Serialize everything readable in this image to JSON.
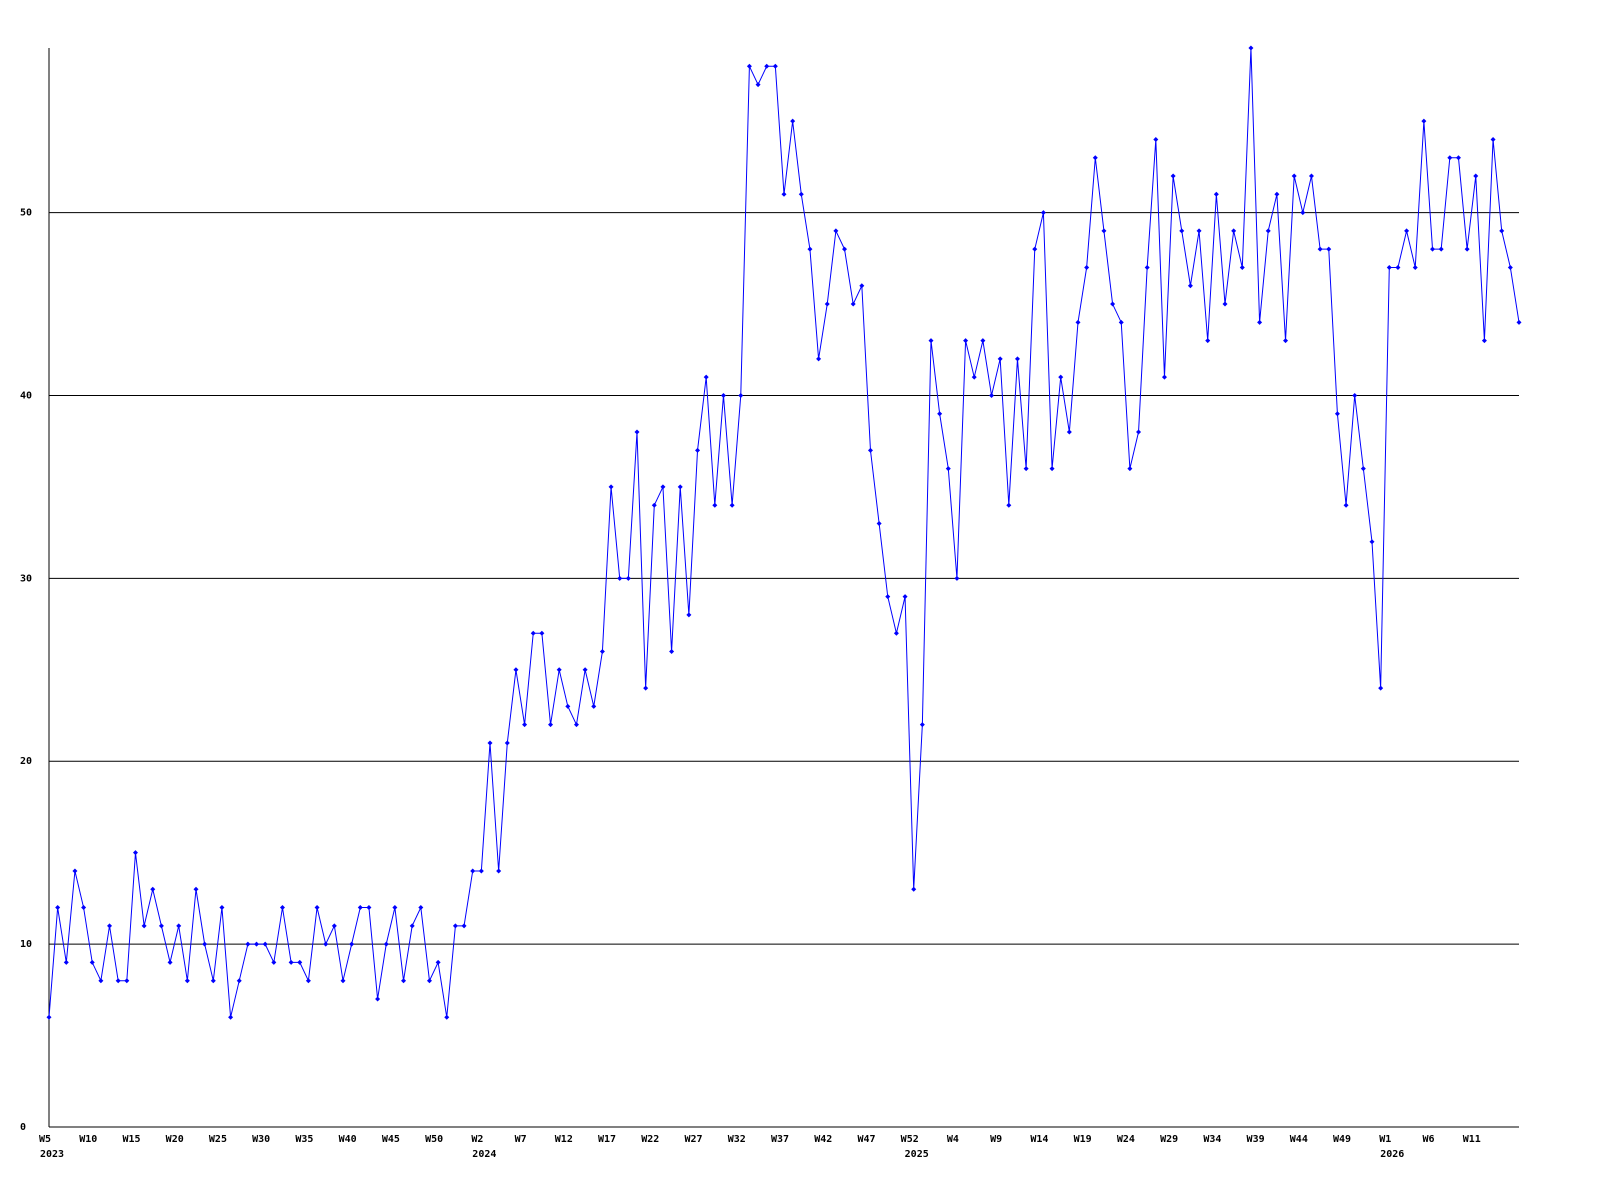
{
  "chart_data": {
    "type": "line",
    "categories": [
      "W5",
      null,
      null,
      null,
      null,
      "W10",
      null,
      null,
      null,
      null,
      "W15",
      null,
      null,
      null,
      null,
      "W20",
      null,
      null,
      null,
      null,
      "W25",
      null,
      null,
      null,
      null,
      "W30",
      null,
      null,
      null,
      null,
      "W35",
      null,
      null,
      null,
      null,
      "W40",
      null,
      null,
      null,
      null,
      "W45",
      null,
      null,
      null,
      null,
      "W50",
      null,
      null,
      null,
      null,
      "W2",
      null,
      null,
      null,
      null,
      "W7",
      null,
      null,
      null,
      null,
      "W12",
      null,
      null,
      null,
      null,
      "W17",
      null,
      null,
      null,
      null,
      "W22",
      null,
      null,
      null,
      null,
      "W27",
      null,
      null,
      null,
      null,
      "W32",
      null,
      null,
      null,
      null,
      "W37",
      null,
      null,
      null,
      null,
      "W42",
      null,
      null,
      null,
      null,
      "W47",
      null,
      null,
      null,
      null,
      "W52",
      null,
      null,
      null,
      null,
      "W4",
      null,
      null,
      null,
      null,
      "W9",
      null,
      null,
      null,
      null,
      "W14",
      null,
      null,
      null,
      null,
      "W19",
      null,
      null,
      null,
      null,
      "W24",
      null,
      null,
      null,
      null,
      "W29",
      null,
      null,
      null,
      null,
      "W34",
      null,
      null,
      null,
      null,
      "W39",
      null,
      null,
      null,
      null,
      "W44",
      null,
      null,
      null,
      null,
      "W49",
      null,
      null,
      null,
      null,
      "W1",
      null,
      null,
      null,
      null,
      "W6",
      null,
      null,
      null,
      null,
      "W11",
      null,
      null,
      null,
      null,
      null
    ],
    "category_years": [
      "2023",
      null,
      null,
      null,
      null,
      null,
      null,
      null,
      null,
      null,
      null,
      null,
      null,
      null,
      null,
      null,
      null,
      null,
      null,
      null,
      null,
      null,
      null,
      null,
      null,
      null,
      null,
      null,
      null,
      null,
      null,
      null,
      null,
      null,
      null,
      null,
      null,
      null,
      null,
      null,
      null,
      null,
      null,
      null,
      null,
      null,
      null,
      null,
      null,
      null,
      "2024",
      null,
      null,
      null,
      null,
      null,
      null,
      null,
      null,
      null,
      null,
      null,
      null,
      null,
      null,
      null,
      null,
      null,
      null,
      null,
      null,
      null,
      null,
      null,
      null,
      null,
      null,
      null,
      null,
      null,
      null,
      null,
      null,
      null,
      null,
      null,
      null,
      null,
      null,
      null,
      null,
      null,
      null,
      null,
      null,
      null,
      null,
      null,
      null,
      null,
      "2025",
      null,
      null,
      null,
      null,
      null,
      null,
      null,
      null,
      null,
      null,
      null,
      null,
      null,
      null,
      null,
      null,
      null,
      null,
      null,
      null,
      null,
      null,
      null,
      null,
      null,
      null,
      null,
      null,
      null,
      null,
      null,
      null,
      null,
      null,
      null,
      null,
      null,
      null,
      null,
      null,
      null,
      null,
      null,
      null,
      null,
      null,
      null,
      null,
      null,
      null,
      null,
      null,
      null,
      null,
      "2026",
      null,
      null,
      null,
      null,
      null,
      null,
      null,
      null,
      null,
      null,
      null,
      null,
      null,
      null,
      null
    ],
    "series": [
      {
        "color": "#0000ff",
        "values": [
          6,
          12,
          9,
          14,
          12,
          9,
          8,
          11,
          8,
          8,
          15,
          11,
          13,
          11,
          9,
          11,
          8,
          13,
          10,
          8,
          12,
          6,
          8,
          10,
          10,
          10,
          9,
          12,
          9,
          9,
          8,
          12,
          10,
          11,
          8,
          10,
          12,
          12,
          7,
          10,
          12,
          8,
          11,
          12,
          8,
          9,
          6,
          11,
          11,
          14,
          14,
          21,
          14,
          21,
          25,
          22,
          27,
          27,
          22,
          25,
          23,
          22,
          25,
          23,
          26,
          35,
          30,
          30,
          38,
          24,
          34,
          35,
          26,
          35,
          28,
          37,
          41,
          34,
          40,
          34,
          40,
          58,
          57,
          58,
          58,
          51,
          55,
          51,
          48,
          42,
          45,
          49,
          48,
          45,
          46,
          37,
          33,
          29,
          27,
          29,
          13,
          22,
          43,
          39,
          36,
          30,
          43,
          41,
          43,
          40,
          42,
          34,
          42,
          36,
          48,
          50,
          36,
          41,
          38,
          44,
          47,
          53,
          49,
          45,
          44,
          36,
          38,
          47,
          54,
          41,
          52,
          49,
          46,
          49,
          43,
          51,
          45,
          49,
          47,
          59,
          44,
          49,
          51,
          43,
          52,
          50,
          52,
          48,
          48,
          39,
          34,
          40,
          36,
          32,
          24,
          47,
          47,
          49,
          47,
          55,
          48,
          48,
          53,
          53,
          48,
          52,
          43,
          54,
          49,
          47,
          44
        ]
      }
    ],
    "ylim": [
      0,
      59
    ],
    "yticks": [
      0,
      10,
      20,
      30,
      40,
      50
    ],
    "grid": true,
    "markers": true
  }
}
